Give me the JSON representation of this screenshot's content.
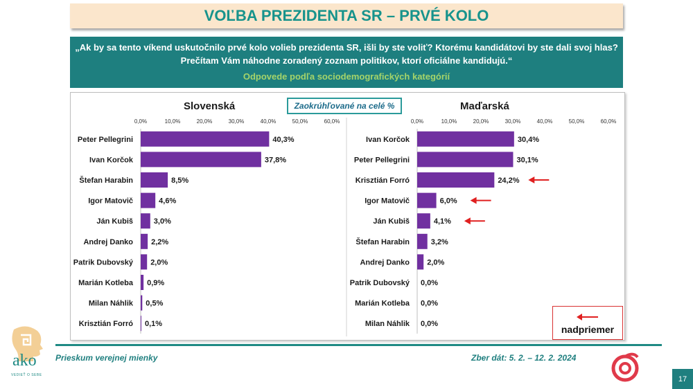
{
  "title": "VOĽBA PREZIDENTA SR – PRVÉ KOLO",
  "question": "„Ak by sa tento víkend uskutočnilo prvé kolo volieb prezidenta SR, išli by ste voliť? Ktorému kandidátovi by ste dali svoj hlas? Prečítam Vám náhodne zoradený zoznam politikov, ktorí oficiálne kandidujú.“",
  "subtitle": "Odpovede podľa sociodemografických kategórií",
  "note": "Zaokrúhľované na celé %",
  "legend": {
    "label": "nadpriemer"
  },
  "footer": {
    "left": "Prieskum verejnej mienky",
    "right": "Zber dát: 5. 2. – 12. 2. 2024",
    "page": "17"
  },
  "logo": {
    "name": "ako",
    "tagline": "VEDIEŤ O SEBE"
  },
  "colors": {
    "bar": "#7030a0",
    "teal": "#1f7f7f",
    "arrow": "#e02020"
  },
  "chart_data": [
    {
      "type": "bar",
      "orientation": "horizontal",
      "title": "Slovenská",
      "xlim": [
        0,
        60
      ],
      "ticks": [
        "0,0%",
        "10,0%",
        "20,0%",
        "30,0%",
        "40,0%",
        "50,0%",
        "60,0%"
      ],
      "categories": [
        "Peter Pellegrini",
        "Ivan Korčok",
        "Štefan Harabin",
        "Igor Matovič",
        "Ján Kubiš",
        "Andrej Danko",
        "Patrik Dubovský",
        "Marián Kotleba",
        "Milan Náhlik",
        "Krisztián Forró"
      ],
      "values": [
        40.3,
        37.8,
        8.5,
        4.6,
        3.0,
        2.2,
        2.0,
        0.9,
        0.5,
        0.1
      ],
      "labels": [
        "40,3%",
        "37,8%",
        "8,5%",
        "4,6%",
        "3,0%",
        "2,2%",
        "2,0%",
        "0,9%",
        "0,5%",
        "0,1%"
      ],
      "above_average": [
        false,
        false,
        false,
        false,
        false,
        false,
        false,
        false,
        false,
        false
      ]
    },
    {
      "type": "bar",
      "orientation": "horizontal",
      "title": "Maďarská",
      "xlim": [
        0,
        60
      ],
      "ticks": [
        "0,0%",
        "10,0%",
        "20,0%",
        "30,0%",
        "40,0%",
        "50,0%",
        "60,0%"
      ],
      "categories": [
        "Ivan Korčok",
        "Peter Pellegrini",
        "Krisztián Forró",
        "Igor Matovič",
        "Ján Kubiš",
        "Štefan Harabin",
        "Andrej Danko",
        "Patrik Dubovský",
        "Marián Kotleba",
        "Milan Náhlik"
      ],
      "values": [
        30.4,
        30.1,
        24.2,
        6.0,
        4.1,
        3.2,
        2.0,
        0.0,
        0.0,
        0.0
      ],
      "labels": [
        "30,4%",
        "30,1%",
        "24,2%",
        "6,0%",
        "4,1%",
        "3,2%",
        "2,0%",
        "0,0%",
        "0,0%",
        "0,0%"
      ],
      "above_average": [
        false,
        false,
        true,
        true,
        true,
        false,
        false,
        false,
        false,
        false
      ]
    }
  ]
}
